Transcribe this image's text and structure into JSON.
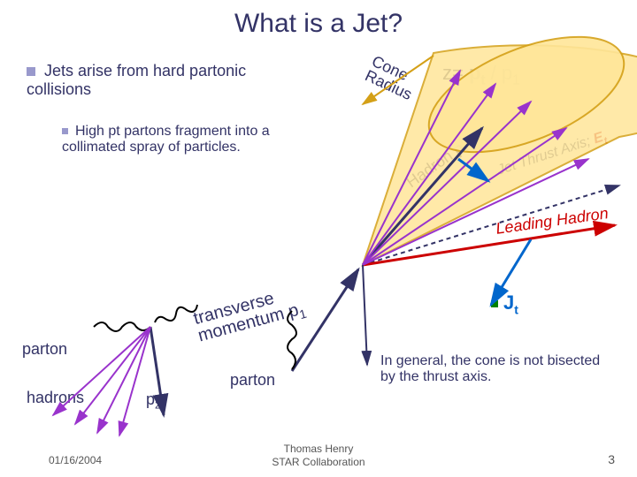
{
  "title": "What is a Jet?",
  "bullet_main": "Jets arise from hard partonic collisions",
  "bullet_sub": "High pt partons fragment into a collimated spray of particles.",
  "z_label_html": "z= <b>p<span class='sub'>t</span></b> / p<span class='sub'>1</span>",
  "jet_axis_html": "Jet Thrust Axis; <span style='color:#cc0000;font-weight:bold'>E<span class=\"sub\">t</span></span>",
  "hadron_pt_html": "Hadron <b>p<span class='sub'>t</span></b>",
  "leading_hadron": "Leading Hadron",
  "cone_radius_html": "Cone<br>Radius",
  "transverse_html": "transverse<br>momentum p<span class='sub'>1</span>",
  "jt_html": "<b>J<span class='sub'>t</span></b>",
  "general_note": "In general, the cone is not bisected by the thrust axis.",
  "parton": "parton",
  "parton_left": "parton",
  "hadrons": "hadrons",
  "p2_html": "p<span class='sub'>2</span>",
  "footer_date": "01/16/2004",
  "footer_center": "Thomas Henry\nSTAR Collaboration",
  "footer_page": "3",
  "colors": {
    "cone_fill": "#ffe699",
    "cone_stroke": "#d4a017",
    "jet_axis": "#333366",
    "hadron_pt_arrow": "#333366",
    "leading_hadron": "#cc0000",
    "purple_arrow": "#9933cc",
    "jt_arrow": "#0066cc",
    "gluon": "#000000",
    "parton_arrow": "#333366"
  }
}
